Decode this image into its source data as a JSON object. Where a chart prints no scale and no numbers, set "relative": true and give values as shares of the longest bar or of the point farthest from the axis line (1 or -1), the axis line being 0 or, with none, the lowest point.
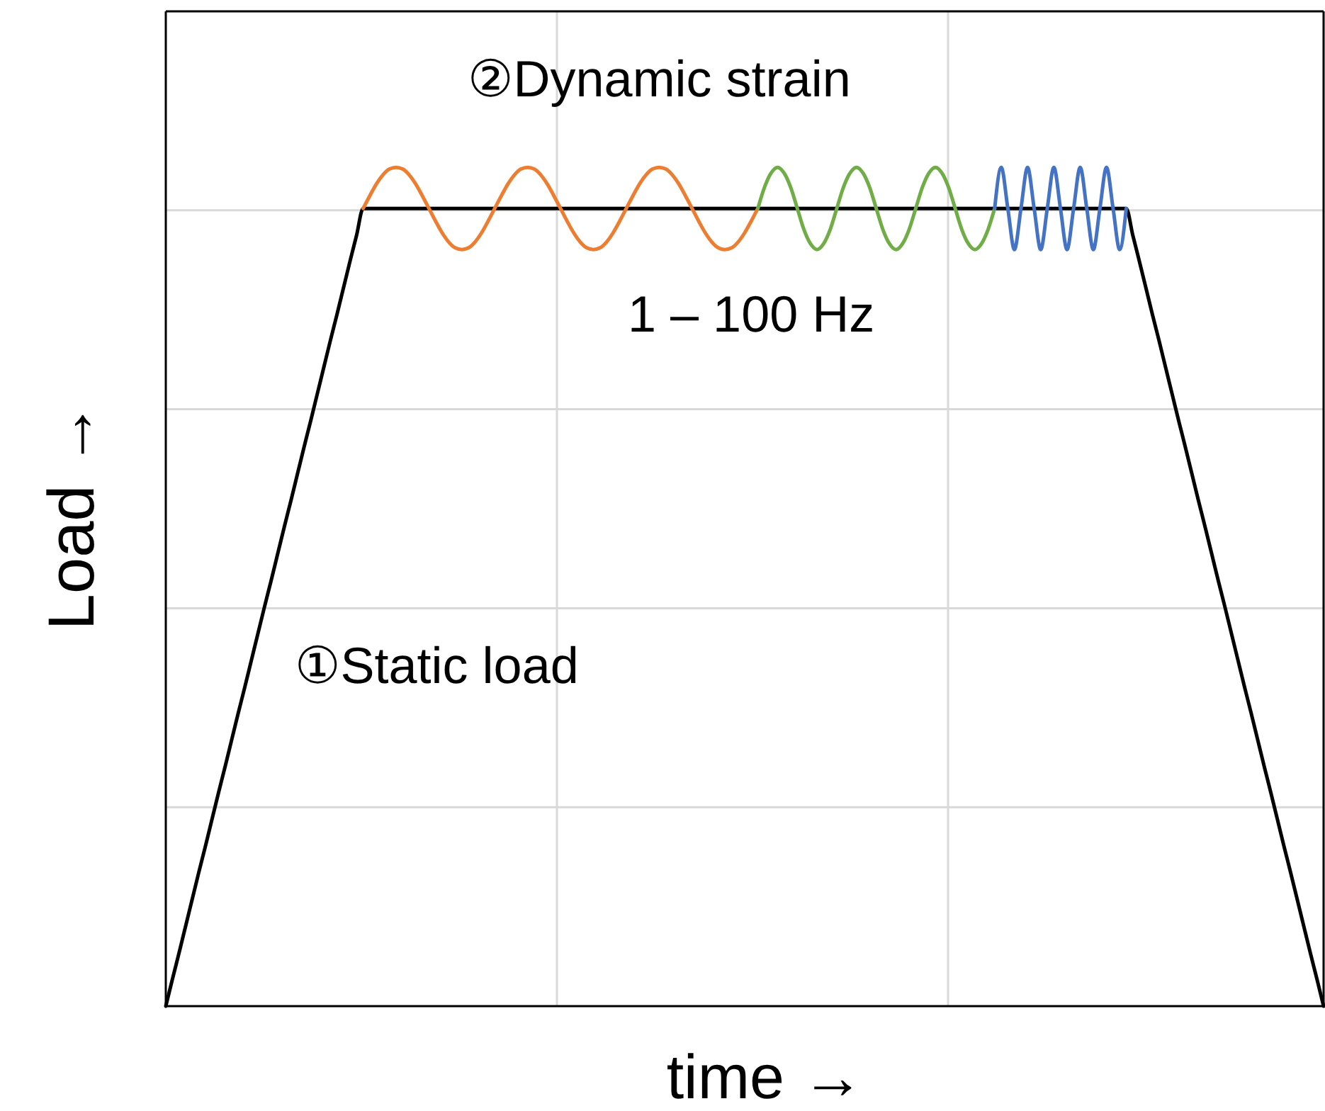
{
  "chart_data": {
    "type": "line",
    "xlabel": "time →",
    "ylabel": "Load →",
    "relative": true,
    "grid": true,
    "marker": "none",
    "line_style": "solid",
    "annotations": [
      "②Dynamic strain",
      "1 – 100 Hz",
      "①Static load"
    ],
    "categories": [
      null,
      null,
      null,
      null,
      null,
      null,
      null,
      null,
      null,
      null,
      null,
      null,
      null,
      null,
      null,
      null,
      null,
      null,
      null,
      null,
      null,
      null,
      null,
      null,
      null,
      null,
      null,
      null,
      null,
      null,
      null,
      null,
      null,
      null,
      null,
      null,
      null,
      null,
      null,
      null,
      null,
      null,
      null,
      null,
      null,
      null,
      null,
      null,
      null,
      null,
      null,
      null,
      null,
      null,
      null,
      null,
      null,
      null,
      null,
      null,
      null,
      null,
      null,
      null,
      null,
      null,
      null,
      null,
      null,
      null,
      null,
      null,
      null,
      null,
      null,
      null,
      null,
      null,
      null,
      null,
      null,
      null,
      null,
      null,
      null,
      null,
      null,
      null,
      null,
      null,
      null,
      null,
      null,
      null,
      null,
      null,
      null,
      null,
      null,
      null,
      null,
      null,
      null,
      null,
      null,
      null,
      null,
      null,
      null,
      null,
      null,
      null,
      null,
      null,
      null,
      null,
      null,
      null,
      null,
      null,
      null,
      null,
      null,
      null,
      null,
      null,
      null,
      null,
      null,
      null,
      null,
      null,
      null,
      null,
      null,
      null,
      null,
      null,
      null,
      null,
      null,
      null,
      null,
      null,
      null,
      null,
      null,
      null,
      null,
      null,
      null,
      null,
      null,
      null,
      null,
      null,
      null,
      null,
      null,
      null,
      null,
      null,
      null,
      null,
      null,
      null,
      null,
      null,
      null,
      null,
      null,
      null,
      null,
      null,
      null,
      null,
      null
    ],
    "series": [
      {
        "color": "#000000",
        "values": [
          0,
          0.032,
          0.063,
          0.095,
          0.127,
          0.159,
          0.19,
          0.222,
          0.254,
          0.285,
          0.317,
          0.349,
          0.38,
          0.412,
          0.444,
          0.476,
          0.507,
          0.539,
          0.571,
          0.602,
          0.634,
          0.666,
          0.697,
          0.729,
          0.761,
          0.793,
          0.824,
          0.856,
          0.888,
          0.919,
          0.951,
          0.951,
          0.951,
          0.951,
          0.951,
          0.951,
          0.951,
          0.951,
          0.951,
          0.951,
          0.951,
          0.951,
          0.951,
          0.951,
          0.951,
          0.951,
          0.951,
          0.951,
          0.951,
          0.951,
          0.951,
          0.951,
          0.951,
          0.951,
          0.951,
          0.951,
          0.951,
          0.951,
          0.951,
          0.951,
          0.951,
          0.951,
          0.951,
          0.951,
          0.951,
          0.951,
          0.951,
          0.951,
          0.951,
          0.951,
          0.951,
          0.951,
          0.951,
          0.951,
          0.951,
          0.951,
          0.951,
          0.951,
          0.951,
          0.951,
          0.951,
          0.951,
          0.951,
          0.951,
          0.951,
          0.951,
          0.951,
          0.951,
          0.951,
          0.951,
          0.951,
          0.951,
          0.951,
          0.951,
          0.951,
          0.951,
          0.951,
          0.951,
          0.951,
          0.951,
          0.951,
          0.951,
          0.951,
          0.951,
          0.951,
          0.951,
          0.951,
          0.951,
          0.951,
          0.951,
          0.951,
          0.951,
          0.951,
          0.951,
          0.951,
          0.951,
          0.951,
          0.951,
          0.951,
          0.951,
          0.951,
          0.951,
          0.951,
          0.951,
          0.951,
          0.951,
          0.951,
          0.951,
          0.951,
          0.951,
          0.951,
          0.951,
          0.951,
          0.951,
          0.951,
          0.951,
          0.951,
          0.951,
          0.951,
          0.951,
          0.951,
          0.951,
          0.951,
          0.951,
          0.951,
          0.951,
          0.951,
          0.919,
          0.888,
          0.856,
          0.824,
          0.793,
          0.761,
          0.729,
          0.697,
          0.666,
          0.634,
          0.602,
          0.571,
          0.539,
          0.507,
          0.476,
          0.444,
          0.412,
          0.38,
          0.349,
          0.317,
          0.285,
          0.254,
          0.222,
          0.19,
          0.159,
          0.127,
          0.095,
          0.063,
          0.032,
          0
        ]
      },
      {
        "color": "#ed7d31",
        "values": [
          null,
          null,
          null,
          null,
          null,
          null,
          null,
          null,
          null,
          null,
          null,
          null,
          null,
          null,
          null,
          null,
          null,
          null,
          null,
          null,
          null,
          null,
          null,
          null,
          null,
          null,
          null,
          null,
          null,
          null,
          0.951,
          0.966,
          0.98,
          0.991,
          0.998,
          1,
          0.998,
          0.991,
          0.98,
          0.966,
          0.951,
          0.936,
          0.922,
          0.911,
          0.904,
          0.902,
          0.904,
          0.911,
          0.922,
          0.936,
          0.951,
          0.966,
          0.98,
          0.991,
          0.998,
          1,
          0.998,
          0.991,
          0.98,
          0.966,
          0.951,
          0.936,
          0.922,
          0.911,
          0.904,
          0.902,
          0.904,
          0.911,
          0.922,
          0.936,
          0.951,
          0.966,
          0.98,
          0.991,
          0.998,
          1,
          0.998,
          0.991,
          0.98,
          0.966,
          0.951,
          0.936,
          0.922,
          0.911,
          0.904,
          0.902,
          0.904,
          0.911,
          0.922,
          0.936,
          0.951,
          null,
          null,
          null,
          null,
          null,
          null,
          null,
          null,
          null,
          null,
          null,
          null,
          null,
          null,
          null,
          null,
          null,
          null,
          null,
          null,
          null,
          null,
          null,
          null,
          null,
          null,
          null,
          null,
          null,
          null,
          null,
          null,
          null,
          null,
          null,
          null,
          null,
          null,
          null,
          null,
          null,
          null,
          null,
          null,
          null,
          null,
          null,
          null,
          null,
          null,
          null,
          null,
          null,
          null,
          null,
          null,
          null,
          null,
          null,
          null,
          null,
          null,
          null,
          null,
          null,
          null,
          null,
          null,
          null,
          null,
          null,
          null,
          null,
          null,
          null,
          null,
          null,
          null,
          null,
          null,
          null,
          null,
          null,
          null,
          null,
          null
        ]
      },
      {
        "color": "#70ad47",
        "values": [
          null,
          null,
          null,
          null,
          null,
          null,
          null,
          null,
          null,
          null,
          null,
          null,
          null,
          null,
          null,
          null,
          null,
          null,
          null,
          null,
          null,
          null,
          null,
          null,
          null,
          null,
          null,
          null,
          null,
          null,
          null,
          null,
          null,
          null,
          null,
          null,
          null,
          null,
          null,
          null,
          null,
          null,
          null,
          null,
          null,
          null,
          null,
          null,
          null,
          null,
          null,
          null,
          null,
          null,
          null,
          null,
          null,
          null,
          null,
          null,
          null,
          null,
          null,
          null,
          null,
          null,
          null,
          null,
          null,
          null,
          null,
          null,
          null,
          null,
          null,
          null,
          null,
          null,
          null,
          null,
          null,
          null,
          null,
          null,
          null,
          null,
          null,
          null,
          null,
          null,
          0.951,
          0.976,
          0.993,
          1,
          0.993,
          0.976,
          0.951,
          0.926,
          0.909,
          0.902,
          0.909,
          0.926,
          0.951,
          0.976,
          0.993,
          1,
          0.993,
          0.976,
          0.951,
          0.926,
          0.909,
          0.902,
          0.909,
          0.926,
          0.951,
          0.976,
          0.993,
          1,
          0.993,
          0.976,
          0.951,
          0.926,
          0.909,
          0.902,
          0.909,
          0.926,
          0.951,
          null,
          null,
          null,
          null,
          null,
          null,
          null,
          null,
          null,
          null,
          null,
          null,
          null,
          null,
          null,
          null,
          null,
          null,
          null,
          null,
          null,
          null,
          null,
          null,
          null,
          null,
          null,
          null,
          null,
          null,
          null,
          null,
          null,
          null,
          null,
          null,
          null,
          null,
          null,
          null,
          null,
          null,
          null,
          null,
          null,
          null,
          null,
          null,
          null,
          null
        ]
      },
      {
        "color": "#4472c4",
        "values": [
          null,
          null,
          null,
          null,
          null,
          null,
          null,
          null,
          null,
          null,
          null,
          null,
          null,
          null,
          null,
          null,
          null,
          null,
          null,
          null,
          null,
          null,
          null,
          null,
          null,
          null,
          null,
          null,
          null,
          null,
          null,
          null,
          null,
          null,
          null,
          null,
          null,
          null,
          null,
          null,
          null,
          null,
          null,
          null,
          null,
          null,
          null,
          null,
          null,
          null,
          null,
          null,
          null,
          null,
          null,
          null,
          null,
          null,
          null,
          null,
          null,
          null,
          null,
          null,
          null,
          null,
          null,
          null,
          null,
          null,
          null,
          null,
          null,
          null,
          null,
          null,
          null,
          null,
          null,
          null,
          null,
          null,
          null,
          null,
          null,
          null,
          null,
          null,
          null,
          null,
          null,
          null,
          null,
          null,
          null,
          null,
          null,
          null,
          null,
          null,
          null,
          null,
          null,
          null,
          null,
          null,
          null,
          null,
          null,
          null,
          null,
          null,
          null,
          null,
          null,
          null,
          null,
          null,
          null,
          null,
          null,
          null,
          null,
          null,
          null,
          null,
          0.951,
          1,
          0.951,
          0.902,
          0.951,
          1,
          0.951,
          0.902,
          0.951,
          1,
          0.951,
          0.902,
          0.951,
          1,
          0.951,
          0.902,
          0.951,
          1,
          0.951,
          0.902,
          0.951,
          null,
          null,
          null,
          null,
          null,
          null,
          null,
          null,
          null,
          null,
          null,
          null,
          null,
          null,
          null,
          null,
          null,
          null,
          null,
          null,
          null,
          null,
          null,
          null,
          null,
          null,
          null,
          null,
          null,
          null
        ]
      }
    ]
  }
}
